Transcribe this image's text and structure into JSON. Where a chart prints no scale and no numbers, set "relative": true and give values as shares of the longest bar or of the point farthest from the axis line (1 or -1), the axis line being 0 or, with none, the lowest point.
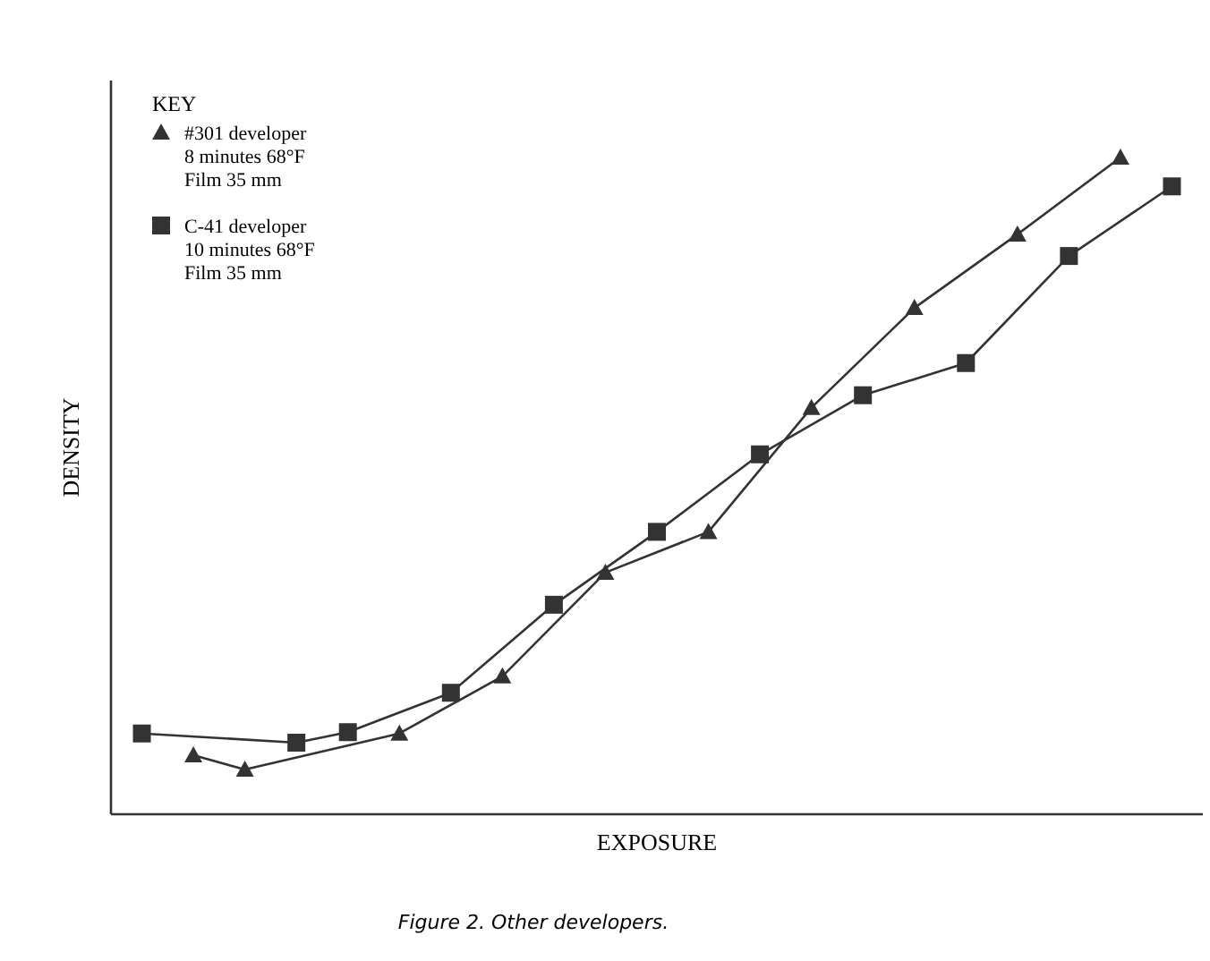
{
  "chart_data": {
    "type": "line",
    "relative": true,
    "xlabel": "EXPOSURE",
    "ylabel": "DENSITY",
    "legend_title": "KEY",
    "legend": "top left",
    "categories": [
      null,
      null,
      null,
      null,
      null,
      null,
      null,
      null,
      null,
      null,
      null,
      null,
      null,
      null,
      null,
      null,
      null,
      null,
      null,
      null,
      null
    ],
    "annotations": [
      "Figure 2. Other developers."
    ],
    "series": [
      {
        "name": "#301 developer\n8 minutes 68°F\nFilm 35 mm",
        "color": "#333333",
        "marker": "triangle",
        "values": [
          null,
          0.09,
          0.068,
          null,
          null,
          0.123,
          null,
          0.21,
          null,
          0.368,
          null,
          0.43,
          null,
          0.619,
          null,
          0.771,
          null,
          0.883,
          null,
          1,
          null
        ]
      },
      {
        "name": "C-41 developer\n10 minutes 68°F\nFilm 35 mm",
        "color": "#333333",
        "marker": "square",
        "values": [
          0.123,
          null,
          null,
          0.109,
          0.125,
          null,
          0.185,
          null,
          0.319,
          null,
          0.43,
          null,
          0.548,
          null,
          0.638,
          null,
          0.687,
          null,
          0.85,
          null,
          0.956
        ]
      }
    ]
  }
}
